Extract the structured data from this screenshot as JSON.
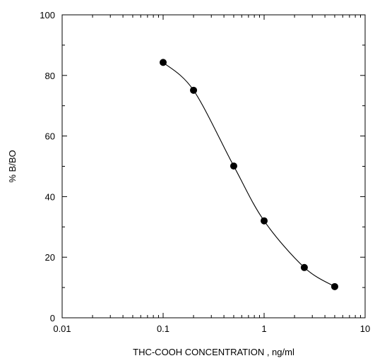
{
  "chart_data": {
    "type": "line",
    "title": "",
    "xlabel": "THC-COOH CONCENTRATION , ng/ml",
    "ylabel": "% B/BO",
    "x_scale": "log",
    "xlim": [
      0.01,
      10
    ],
    "ylim": [
      0,
      100
    ],
    "x_ticks": [
      "0.01",
      "0.1",
      "1",
      "10"
    ],
    "y_ticks": [
      "0",
      "20",
      "40",
      "60",
      "80",
      "100"
    ],
    "grid": false,
    "legend": "none",
    "marker_color": "#000000",
    "series": [
      {
        "x": [
          0.1,
          0.2,
          0.5,
          1,
          2.5,
          5
        ],
        "y": [
          84.3,
          75.1,
          50.1,
          32.0,
          16.6,
          10.3
        ]
      }
    ]
  }
}
